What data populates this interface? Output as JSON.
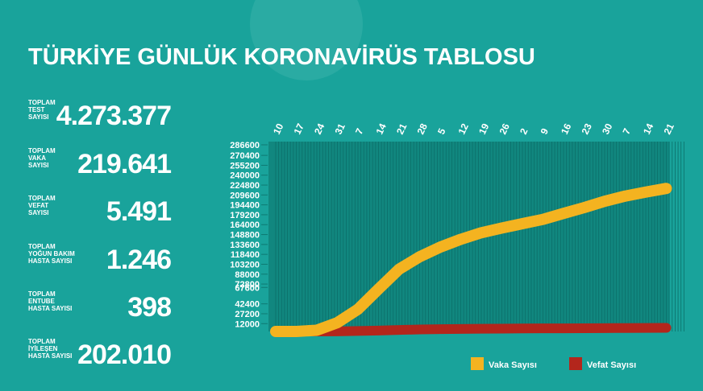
{
  "stats": [
    {
      "label_lines": [
        "TOPLAM",
        "TEST",
        "SAYISI"
      ],
      "value": "4.273.377"
    },
    {
      "label_lines": [
        "TOPLAM",
        "VAKA",
        "SAYISI"
      ],
      "value": "219.641"
    },
    {
      "label_lines": [
        "TOPLAM",
        "VEFAT",
        "SAYISI"
      ],
      "value": "5.491"
    },
    {
      "label_lines": [
        "TOPLAM",
        "YOĞUN BAKIM",
        "HASTA SAYISI"
      ],
      "value": "1.246"
    },
    {
      "label_lines": [
        "TOPLAM",
        "ENTUBE",
        "HASTA SAYISI"
      ],
      "value": "398"
    },
    {
      "label_lines": [
        "TOPLAM",
        "İYİLEŞEN",
        "HASTA SAYISI"
      ],
      "value": "202.010"
    }
  ],
  "chart_data": {
    "type": "line",
    "title": "TÜRKİYE GÜNLÜK KORONAVİRÜS TABLOSU",
    "categories": [
      "10",
      "17",
      "24",
      "31",
      "7",
      "14",
      "21",
      "28",
      "5",
      "12",
      "19",
      "26",
      "2",
      "9",
      "16",
      "23",
      "30",
      "7",
      "14",
      "21"
    ],
    "series": [
      {
        "name": "Vaka Sayısı",
        "color": "#f4b320",
        "values": [
          0,
          47,
          1872,
          13531,
          34109,
          65111,
          95591,
          114653,
          129491,
          141475,
          151615,
          158762,
          165555,
          172114,
          181298,
          190165,
          199906,
          207897,
          214001,
          219641
        ]
      },
      {
        "name": "Vefat Sayısı",
        "color": "#b3261c",
        "values": [
          0,
          1,
          44,
          214,
          725,
          1403,
          2259,
          3081,
          3520,
          3895,
          4199,
          4397,
          4585,
          4729,
          4842,
          5001,
          5131,
          5241,
          5363,
          5491
        ]
      }
    ],
    "ylim": [
      0,
      286600
    ],
    "yticks": [
      286600,
      270400,
      255200,
      240000,
      224800,
      209600,
      194400,
      179200,
      164000,
      148800,
      133600,
      118400,
      103200,
      88000,
      72800,
      67600,
      42400,
      27200,
      12000
    ],
    "grid": true,
    "legend": "bottom-right"
  }
}
